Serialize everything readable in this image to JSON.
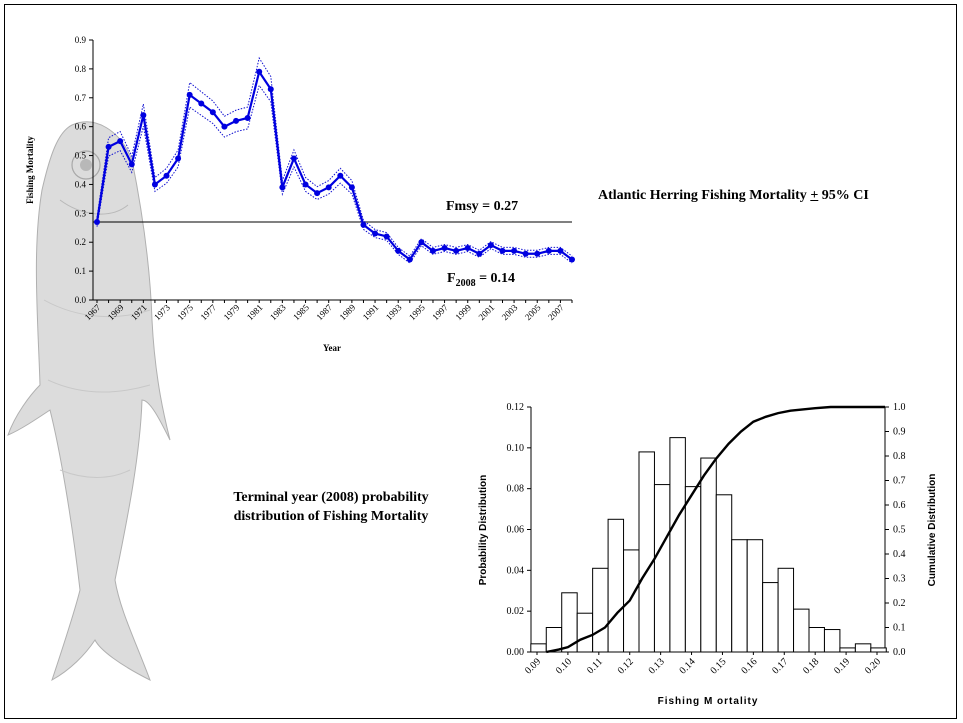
{
  "top_chart_title_prefix": "Atlantic Herring Fishing Mortality ",
  "top_chart_title_pm": "+",
  "top_chart_title_suffix": " 95% CI",
  "bottom_chart_title_line1": "Terminal year (2008) probability",
  "bottom_chart_title_line2": "distribution of Fishing Mortality",
  "chart_data": [
    {
      "type": "line",
      "xlabel": "Year",
      "ylabel": "Fishing Mortality",
      "xlim": [
        1967,
        2008
      ],
      "ylim": [
        0,
        0.9
      ],
      "yticks": [
        0.0,
        0.1,
        0.2,
        0.3,
        0.4,
        0.5,
        0.6,
        0.7,
        0.8,
        0.9
      ],
      "xtick_labels": [
        "1967",
        "1969",
        "1971",
        "1973",
        "1975",
        "1977",
        "1979",
        "1981",
        "1983",
        "1985",
        "1987",
        "1989",
        "1991",
        "1993",
        "1995",
        "1997",
        "1999",
        "2001",
        "2003",
        "2005",
        "2007"
      ],
      "x": [
        1967,
        1968,
        1969,
        1970,
        1971,
        1972,
        1973,
        1974,
        1975,
        1976,
        1977,
        1978,
        1979,
        1980,
        1981,
        1982,
        1983,
        1984,
        1985,
        1986,
        1987,
        1988,
        1989,
        1990,
        1991,
        1992,
        1993,
        1994,
        1995,
        1996,
        1997,
        1998,
        1999,
        2000,
        2001,
        2002,
        2003,
        2004,
        2005,
        2006,
        2007,
        2008
      ],
      "series": [
        {
          "values": [
            0.27,
            0.53,
            0.55,
            0.47,
            0.64,
            0.4,
            0.43,
            0.49,
            0.71,
            0.68,
            0.65,
            0.6,
            0.62,
            0.63,
            0.79,
            0.73,
            0.39,
            0.49,
            0.4,
            0.37,
            0.39,
            0.43,
            0.39,
            0.26,
            0.23,
            0.22,
            0.17,
            0.14,
            0.2,
            0.17,
            0.18,
            0.17,
            0.18,
            0.16,
            0.19,
            0.17,
            0.17,
            0.16,
            0.16,
            0.17,
            0.17,
            0.14
          ]
        }
      ],
      "reference_line": {
        "value": 0.27,
        "label": "Fmsy = 0.27"
      },
      "annotation": {
        "label_main": "F",
        "label_sub": "2008",
        "label_value": " = 0.14"
      }
    },
    {
      "type": "bar",
      "xlabel": "Fishing M ortality",
      "ylabel": "Probability Distribution",
      "y2label": "Cumulative Distribution",
      "xtick_labels": [
        "0.09",
        "0.10",
        "0.11",
        "0.12",
        "0.13",
        "0.14",
        "0.15",
        "0.16",
        "0.17",
        "0.18",
        "0.19",
        "0.20"
      ],
      "xlim": [
        0.09,
        0.2
      ],
      "ylim": [
        0,
        0.12
      ],
      "y2lim": [
        0,
        1.0
      ],
      "yticks": [
        "0.00",
        "0.02",
        "0.04",
        "0.06",
        "0.08",
        "0.10",
        "0.12"
      ],
      "y2ticks": [
        "0.0",
        "0.1",
        "0.2",
        "0.3",
        "0.4",
        "0.5",
        "0.6",
        "0.7",
        "0.8",
        "0.9",
        "1.0"
      ],
      "bin_centers": [
        0.0905,
        0.0955,
        0.1005,
        0.1055,
        0.1105,
        0.1155,
        0.1205,
        0.1255,
        0.1305,
        0.1355,
        0.1405,
        0.1455,
        0.1505,
        0.1555,
        0.1605,
        0.1655,
        0.1705,
        0.1755,
        0.1805,
        0.1855,
        0.1905,
        0.1955,
        0.2005
      ],
      "values": [
        0.004,
        0.012,
        0.029,
        0.019,
        0.041,
        0.065,
        0.05,
        0.098,
        0.082,
        0.105,
        0.081,
        0.095,
        0.077,
        0.055,
        0.055,
        0.034,
        0.041,
        0.021,
        0.012,
        0.011,
        0.002,
        0.004,
        0.002
      ],
      "cumulative_x": [
        0.093,
        0.097,
        0.1,
        0.104,
        0.108,
        0.112,
        0.116,
        0.12,
        0.124,
        0.128,
        0.132,
        0.136,
        0.14,
        0.144,
        0.148,
        0.152,
        0.156,
        0.16,
        0.164,
        0.168,
        0.172,
        0.176,
        0.18,
        0.185,
        0.19,
        0.195,
        0.2
      ],
      "cumulative_values": [
        0.0,
        0.01,
        0.02,
        0.05,
        0.07,
        0.1,
        0.16,
        0.21,
        0.3,
        0.38,
        0.47,
        0.56,
        0.64,
        0.72,
        0.79,
        0.85,
        0.9,
        0.94,
        0.96,
        0.975,
        0.985,
        0.99,
        0.995,
        1.0,
        1.0,
        1.0,
        1.0
      ]
    }
  ]
}
